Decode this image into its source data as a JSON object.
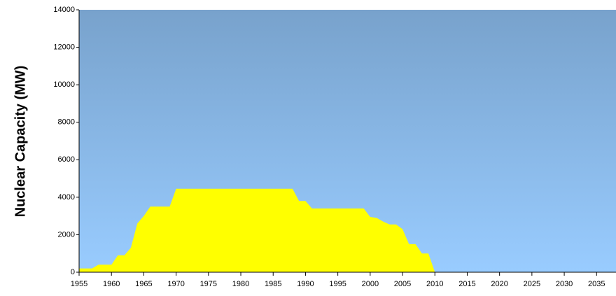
{
  "chart_data": {
    "type": "area",
    "y_label": "Nuclear Capacity (MW)",
    "x": [
      1955,
      1956,
      1957,
      1958,
      1959,
      1960,
      1961,
      1962,
      1963,
      1964,
      1965,
      1966,
      1967,
      1968,
      1969,
      1970,
      1971,
      1972,
      1973,
      1974,
      1975,
      1976,
      1977,
      1978,
      1979,
      1980,
      1981,
      1982,
      1983,
      1984,
      1985,
      1986,
      1987,
      1988,
      1989,
      1990,
      1991,
      1992,
      1993,
      1994,
      1995,
      1996,
      1997,
      1998,
      1999,
      2000,
      2001,
      2002,
      2003,
      2004,
      2005,
      2006,
      2007,
      2008,
      2009,
      2010
    ],
    "values": [
      200,
      200,
      200,
      400,
      400,
      400,
      900,
      900,
      1300,
      2600,
      3000,
      3500,
      3500,
      3500,
      3500,
      4450,
      4450,
      4450,
      4450,
      4450,
      4450,
      4450,
      4450,
      4450,
      4450,
      4450,
      4450,
      4450,
      4450,
      4450,
      4450,
      4450,
      4450,
      4450,
      3800,
      3800,
      3400,
      3400,
      3400,
      3400,
      3400,
      3400,
      3400,
      3400,
      3400,
      2950,
      2900,
      2700,
      2550,
      2550,
      2300,
      1500,
      1500,
      1000,
      1000,
      0
    ],
    "color": "#ffff00",
    "xlim": [
      1955,
      2038
    ],
    "xticks": [
      1955,
      1960,
      1965,
      1970,
      1975,
      1980,
      1985,
      1990,
      1995,
      2000,
      2005,
      2010,
      2015,
      2020,
      2025,
      2030,
      2035
    ],
    "ylim": [
      0,
      14000
    ],
    "yticks": [
      0,
      2000,
      4000,
      6000,
      8000,
      10000,
      12000,
      14000
    ]
  }
}
